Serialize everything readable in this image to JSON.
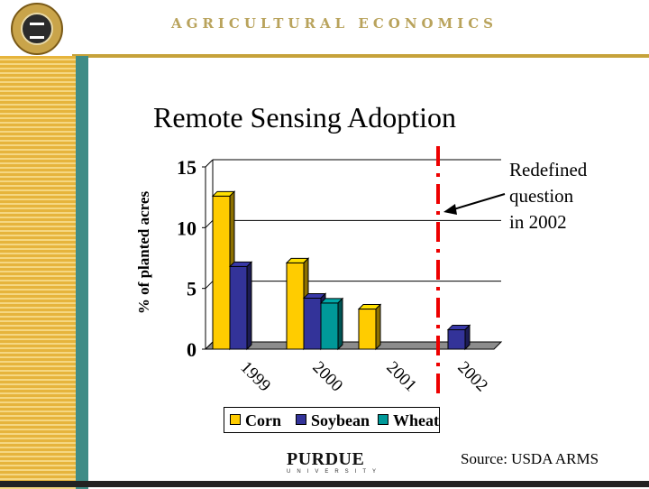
{
  "header": {
    "title": "AGRICULTURAL ECONOMICS",
    "seal_icon": "university-seal-icon"
  },
  "slide": {
    "title": "Remote Sensing Adoption",
    "annotation_lines": [
      "Redefined",
      "question",
      "in 2002"
    ],
    "source": "Source:  USDA ARMS",
    "footer_logo": "PURDUE",
    "footer_logo_sub": "UNIVERSITY"
  },
  "colors": {
    "corn": "#ffcc00",
    "soybean": "#333399",
    "wheat": "#009999",
    "divider": "#ee0000",
    "gold": "#c6a23a"
  },
  "chart_data": {
    "type": "bar",
    "title": "Remote Sensing Adoption",
    "ylabel": "% of planted acres",
    "xlabel": "",
    "ylim": [
      0,
      15
    ],
    "yticks": [
      0,
      5,
      10,
      15
    ],
    "categories": [
      "1999",
      "2000",
      "2001",
      "2002"
    ],
    "series": [
      {
        "name": "Corn",
        "values": [
          12.6,
          7.1,
          3.3,
          null
        ]
      },
      {
        "name": "Soybean",
        "values": [
          6.8,
          4.2,
          null,
          1.6
        ]
      },
      {
        "name": "Wheat",
        "values": [
          null,
          3.8,
          null,
          null
        ]
      }
    ],
    "grid": true,
    "legend": "bottom"
  }
}
